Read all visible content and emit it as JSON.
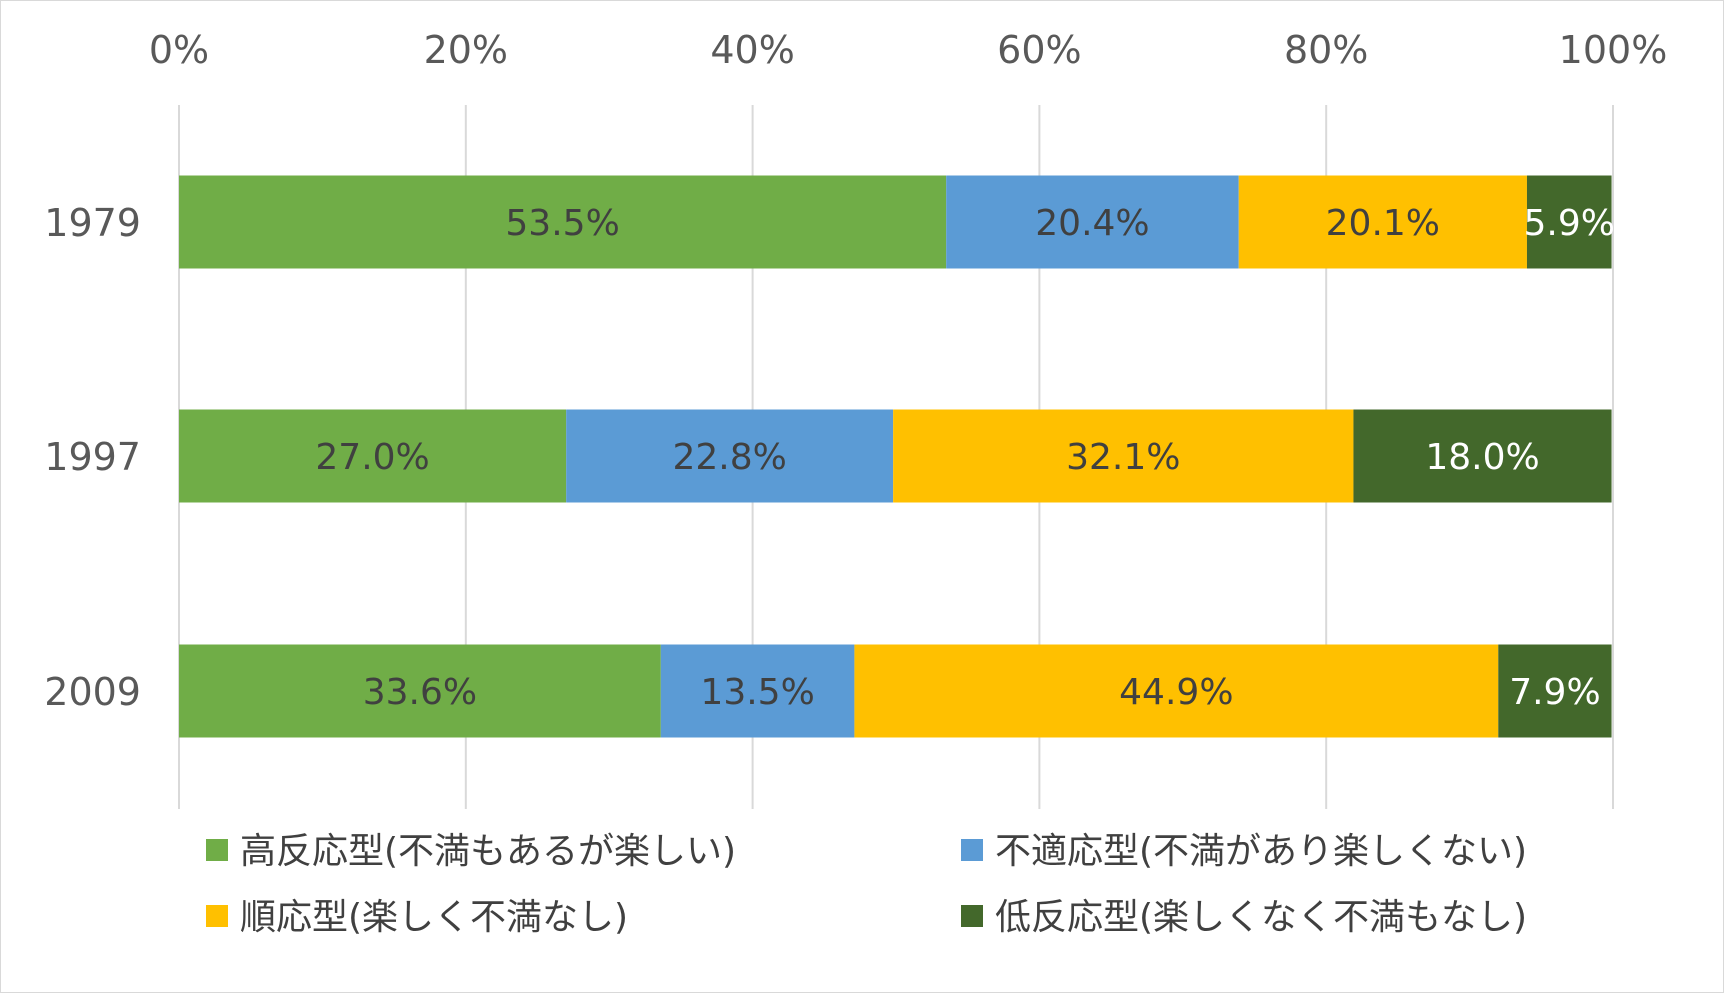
{
  "chart_data": {
    "type": "bar",
    "orientation": "horizontal",
    "stacked": "percent",
    "title": "",
    "xlabel": "",
    "ylabel": "",
    "xlim": [
      0,
      100
    ],
    "x_ticks": [
      "0%",
      "20%",
      "40%",
      "60%",
      "80%",
      "100%"
    ],
    "x_axis_position": "top",
    "grid": true,
    "legend_position": "bottom",
    "categories": [
      "1979",
      "1997",
      "2009"
    ],
    "series": [
      {
        "name": "高反応型(不満もあるが楽しい)",
        "color": "#70ad47",
        "label_color": "#404040",
        "values": [
          53.5,
          27.0,
          33.6
        ],
        "labels": [
          "53.5%",
          "27.0%",
          "33.6%"
        ]
      },
      {
        "name": "不適応型(不満があり楽しくない)",
        "color": "#5b9bd5",
        "label_color": "#404040",
        "values": [
          20.4,
          22.8,
          13.5
        ],
        "labels": [
          "20.4%",
          "22.8%",
          "13.5%"
        ]
      },
      {
        "name": "順応型(楽しく不満なし)",
        "color": "#ffc000",
        "label_color": "#404040",
        "values": [
          20.1,
          32.1,
          44.9
        ],
        "labels": [
          "20.1%",
          "32.1%",
          "44.9%"
        ]
      },
      {
        "name": "低反応型(楽しくなく不満もなし)",
        "color": "#43682b",
        "label_color": "#ffffff",
        "values": [
          5.9,
          18.0,
          7.9
        ],
        "labels": [
          "5.9%",
          "18.0%",
          "7.9%"
        ]
      }
    ]
  }
}
